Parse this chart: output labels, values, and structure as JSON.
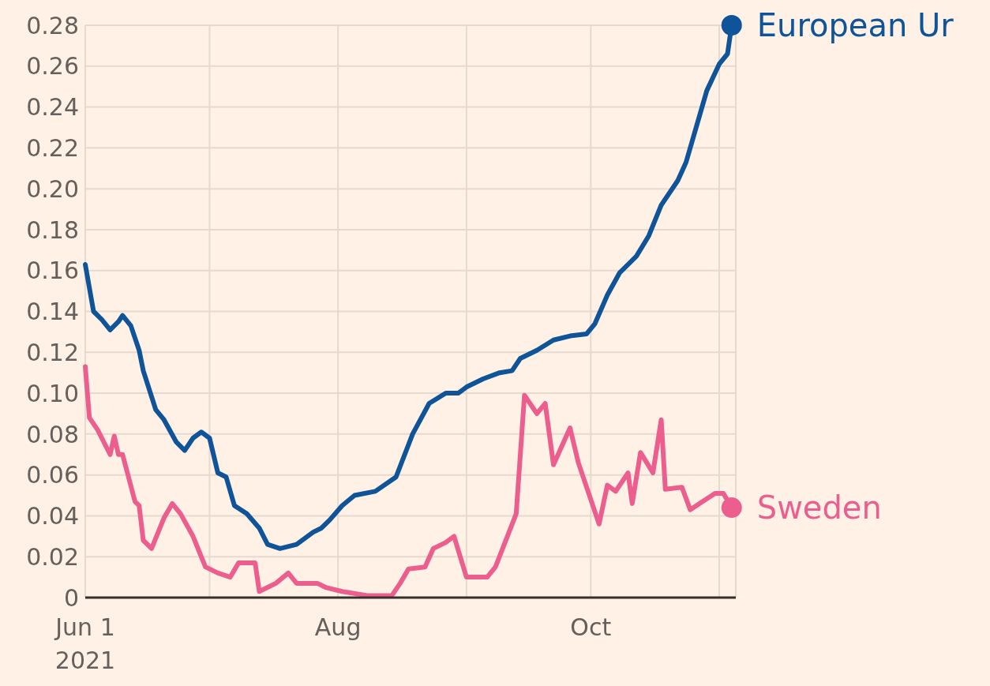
{
  "chart_data": {
    "type": "line",
    "xlim": [
      "2021-06-01",
      "2021-11-05"
    ],
    "xticks": [
      {
        "value": "2021-06-01",
        "label": "Jun 1\n2021"
      },
      {
        "value": "2021-07-01",
        "label": null
      },
      {
        "value": "2021-08-01",
        "label": "Aug"
      },
      {
        "value": "2021-09-01",
        "label": null
      },
      {
        "value": "2021-10-01",
        "label": "Oct"
      },
      {
        "value": "2021-11-01",
        "label": null
      }
    ],
    "ylim": [
      0,
      0.28
    ],
    "yticks": [
      0,
      0.02,
      0.04,
      0.06,
      0.08,
      {
        "value": 0.1,
        "label": "0.10"
      },
      0.12,
      0.14,
      0.16,
      0.18,
      {
        "value": 0.2,
        "label": "0.20"
      },
      0.22,
      0.24,
      0.26,
      0.28
    ],
    "grid": true,
    "line_style": "solid",
    "series": [
      {
        "name": "European Ur",
        "color": "#0f5499",
        "x": [
          "2021-06-01",
          "2021-06-03",
          "2021-06-05",
          "2021-06-07",
          "2021-06-09",
          "2021-06-10",
          "2021-06-12",
          "2021-06-14",
          "2021-06-15",
          "2021-06-18",
          "2021-06-20",
          "2021-06-23",
          "2021-06-25",
          "2021-06-27",
          "2021-06-29",
          "2021-07-01",
          "2021-07-03",
          "2021-07-05",
          "2021-07-07",
          "2021-07-10",
          "2021-07-13",
          "2021-07-15",
          "2021-07-18",
          "2021-07-22",
          "2021-07-26",
          "2021-07-28",
          "2021-07-30",
          "2021-08-02",
          "2021-08-05",
          "2021-08-10",
          "2021-08-15",
          "2021-08-19",
          "2021-08-23",
          "2021-08-27",
          "2021-08-30",
          "2021-09-01",
          "2021-09-05",
          "2021-09-09",
          "2021-09-12",
          "2021-09-14",
          "2021-09-18",
          "2021-09-22",
          "2021-09-26",
          "2021-09-30",
          "2021-10-02",
          "2021-10-05",
          "2021-10-08",
          "2021-10-12",
          "2021-10-15",
          "2021-10-18",
          "2021-10-22",
          "2021-10-24",
          "2021-10-27",
          "2021-10-29",
          "2021-11-01",
          "2021-11-03",
          "2021-11-04"
        ],
        "values": [
          0.163,
          0.14,
          0.136,
          0.131,
          0.135,
          0.138,
          0.133,
          0.121,
          0.111,
          0.092,
          0.087,
          0.076,
          0.072,
          0.078,
          0.081,
          0.078,
          0.061,
          0.059,
          0.045,
          0.041,
          0.034,
          0.026,
          0.024,
          0.026,
          0.032,
          0.034,
          0.038,
          0.045,
          0.05,
          0.052,
          0.059,
          0.08,
          0.095,
          0.1,
          0.1,
          0.103,
          0.107,
          0.11,
          0.111,
          0.117,
          0.121,
          0.126,
          0.128,
          0.129,
          0.134,
          0.148,
          0.159,
          0.167,
          0.177,
          0.192,
          0.204,
          0.213,
          0.234,
          0.248,
          0.261,
          0.266,
          0.28
        ]
      },
      {
        "name": "Sweden",
        "color": "#eb5e8d",
        "x": [
          "2021-06-01",
          "2021-06-02",
          "2021-06-04",
          "2021-06-07",
          "2021-06-08",
          "2021-06-09",
          "2021-06-10",
          "2021-06-13",
          "2021-06-14",
          "2021-06-15",
          "2021-06-17",
          "2021-06-20",
          "2021-06-22",
          "2021-06-24",
          "2021-06-27",
          "2021-06-30",
          "2021-07-03",
          "2021-07-06",
          "2021-07-08",
          "2021-07-12",
          "2021-07-13",
          "2021-07-17",
          "2021-07-20",
          "2021-07-22",
          "2021-07-27",
          "2021-07-29",
          "2021-08-02",
          "2021-08-08",
          "2021-08-14",
          "2021-08-16",
          "2021-08-18",
          "2021-08-22",
          "2021-08-24",
          "2021-08-27",
          "2021-08-29",
          "2021-09-01",
          "2021-09-06",
          "2021-09-08",
          "2021-09-13",
          "2021-09-15",
          "2021-09-18",
          "2021-09-20",
          "2021-09-22",
          "2021-09-26",
          "2021-09-28",
          "2021-10-03",
          "2021-10-05",
          "2021-10-07",
          "2021-10-10",
          "2021-10-11",
          "2021-10-13",
          "2021-10-16",
          "2021-10-18",
          "2021-10-19",
          "2021-10-23",
          "2021-10-25",
          "2021-10-28",
          "2021-10-31",
          "2021-11-02",
          "2021-11-04"
        ],
        "values": [
          0.113,
          0.088,
          0.082,
          0.07,
          0.079,
          0.07,
          0.07,
          0.047,
          0.045,
          0.028,
          0.024,
          0.039,
          0.046,
          0.041,
          0.03,
          0.015,
          0.012,
          0.01,
          0.017,
          0.017,
          0.003,
          0.007,
          0.012,
          0.007,
          0.007,
          0.005,
          0.003,
          0.001,
          0.001,
          0.007,
          0.014,
          0.015,
          0.024,
          0.027,
          0.03,
          0.01,
          0.01,
          0.015,
          0.041,
          0.099,
          0.09,
          0.095,
          0.065,
          0.083,
          0.066,
          0.036,
          0.055,
          0.052,
          0.061,
          0.046,
          0.071,
          0.061,
          0.087,
          0.053,
          0.054,
          0.043,
          0.047,
          0.051,
          0.051,
          0.044
        ]
      }
    ]
  }
}
